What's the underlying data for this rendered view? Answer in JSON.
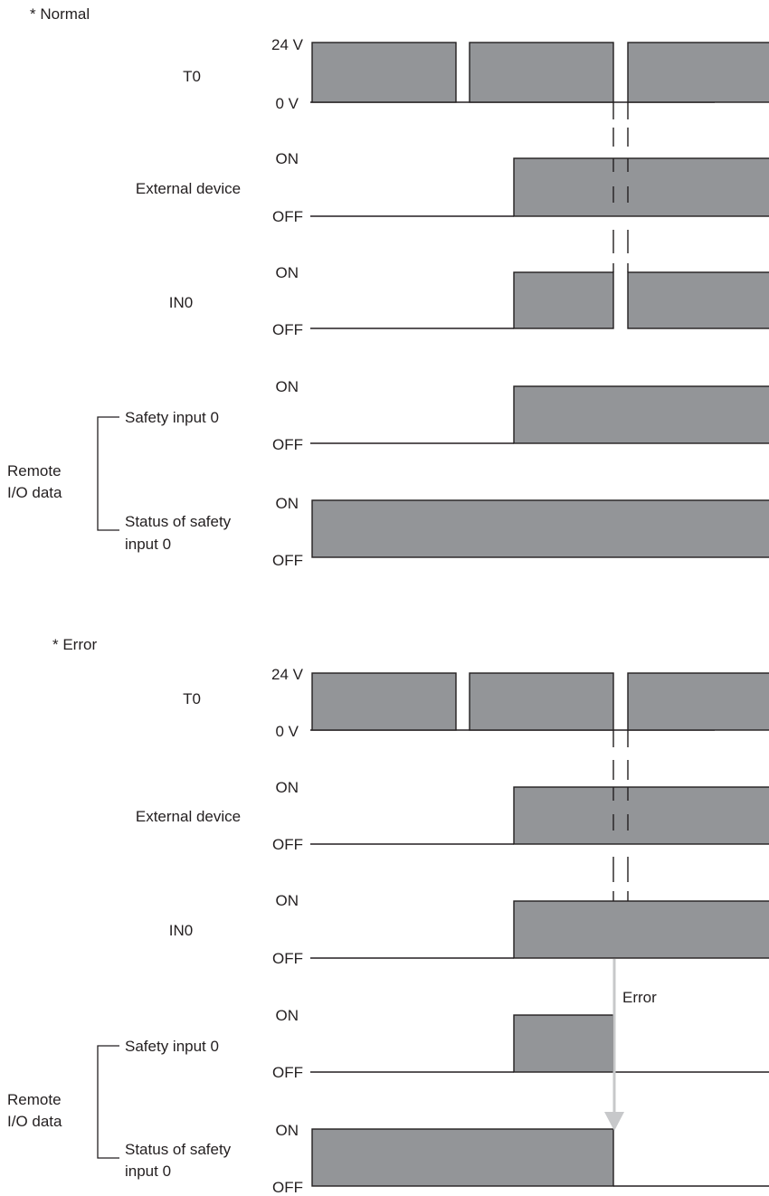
{
  "normal": {
    "heading": "* Normal",
    "t0": {
      "name": "T0",
      "high_label": "24 V",
      "low_label": "0 V"
    },
    "external_device": {
      "name": "External device",
      "high_label": "ON",
      "low_label": "OFF"
    },
    "in0": {
      "name": "IN0",
      "high_label": "ON",
      "low_label": "OFF"
    },
    "safety_input": {
      "name": "Safety input 0",
      "high_label": "ON",
      "low_label": "OFF"
    },
    "status_safety_input": {
      "name_line1": "Status of safety",
      "name_line2": "input 0",
      "high_label": "ON",
      "low_label": "OFF"
    },
    "group": {
      "line1": "Remote",
      "line2": "I/O data"
    }
  },
  "error": {
    "heading": "* Error",
    "t0": {
      "name": "T0",
      "high_label": "24 V",
      "low_label": "0 V"
    },
    "external_device": {
      "name": "External device",
      "high_label": "ON",
      "low_label": "OFF"
    },
    "in0": {
      "name": "IN0",
      "high_label": "ON",
      "low_label": "OFF"
    },
    "safety_input": {
      "name": "Safety input 0",
      "high_label": "ON",
      "low_label": "OFF"
    },
    "status_safety_input": {
      "name_line1": "Status of safety",
      "name_line2": "input 0",
      "high_label": "ON",
      "low_label": "OFF"
    },
    "group": {
      "line1": "Remote",
      "line2": "I/O data"
    },
    "error_label": "Error"
  },
  "colors": {
    "signal_fill": "#939598",
    "line": "#231f20",
    "error_arrow": "#c7c8ca"
  }
}
